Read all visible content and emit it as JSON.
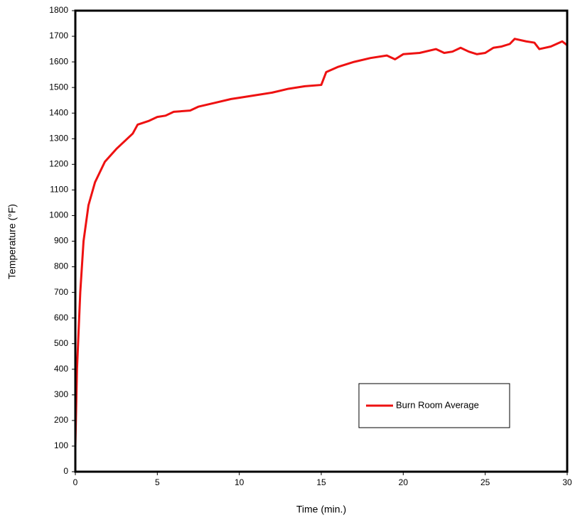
{
  "chart_data": {
    "type": "line",
    "x_label": "Time (min.)",
    "y_label": "Temperature (°F)",
    "x": [
      0,
      0.1,
      0.3,
      0.5,
      0.8,
      1.2,
      1.8,
      2.5,
      3.5,
      3.8,
      4.5,
      5,
      5.5,
      6,
      7,
      7.5,
      8.5,
      9.5,
      10,
      11,
      12,
      13,
      14,
      15,
      15.3,
      16,
      17,
      18,
      19,
      19.5,
      20,
      21,
      22,
      22.5,
      23,
      23.5,
      24,
      24.5,
      25,
      25.5,
      26,
      26.5,
      26.8,
      27.5,
      28,
      28.3,
      29,
      29.7,
      30
    ],
    "series": [
      {
        "name": "Burn Room Average",
        "color": "#ee1111",
        "values": [
          100,
          400,
          700,
          900,
          1040,
          1130,
          1210,
          1260,
          1320,
          1355,
          1370,
          1385,
          1390,
          1405,
          1410,
          1425,
          1440,
          1455,
          1460,
          1470,
          1480,
          1495,
          1505,
          1510,
          1560,
          1580,
          1600,
          1615,
          1625,
          1610,
          1630,
          1635,
          1650,
          1635,
          1640,
          1655,
          1640,
          1630,
          1635,
          1655,
          1660,
          1670,
          1690,
          1680,
          1675,
          1650,
          1660,
          1680,
          1665
        ]
      }
    ],
    "xlim": [
      0,
      30
    ],
    "xticks": [
      0,
      5,
      10,
      15,
      20,
      25,
      30
    ],
    "ylim": [
      0,
      1800
    ],
    "yticks": [
      0,
      100,
      200,
      300,
      400,
      500,
      600,
      700,
      800,
      900,
      1000,
      1100,
      1200,
      1300,
      1400,
      1500,
      1600,
      1700,
      1800
    ],
    "legend": "lower right"
  }
}
